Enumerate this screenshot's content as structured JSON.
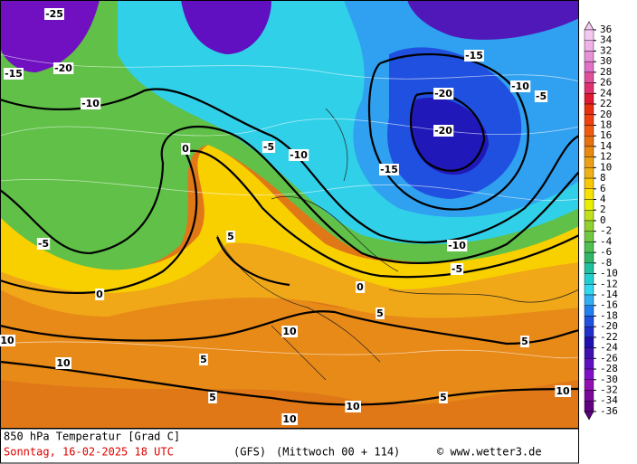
{
  "map": {
    "title": "850 hPa Temperatur [Grad C]",
    "date": "Sonntag, 16-02-2025  18 UTC",
    "model": "(GFS)",
    "run": "(Mittwoch 00 + 114)",
    "credit": "© www.wetter3.de",
    "legend": {
      "levels": [
        36,
        34,
        32,
        30,
        28,
        26,
        24,
        22,
        20,
        18,
        16,
        14,
        12,
        10,
        8,
        6,
        4,
        2,
        0,
        -2,
        -4,
        -6,
        -8,
        -10,
        -12,
        -14,
        -16,
        -18,
        -20,
        -22,
        -24,
        -26,
        -28,
        -30,
        -32,
        -34,
        -36
      ],
      "colors": [
        "#f4c8f0",
        "#f0b0e8",
        "#e890d8",
        "#e070c8",
        "#e0509c",
        "#e03070",
        "#e01830",
        "#e83010",
        "#f04010",
        "#f05a10",
        "#e87010",
        "#e88a10",
        "#eca018",
        "#f0b018",
        "#f8c800",
        "#f8e000",
        "#e8f000",
        "#c0e020",
        "#90d030",
        "#70c840",
        "#50c050",
        "#30b868",
        "#20c0a0",
        "#20d0d0",
        "#30d8f0",
        "#30b0f0",
        "#2080f0",
        "#2050e0",
        "#2030c8",
        "#2010b0",
        "#4010b0",
        "#6010c0",
        "#8010c8",
        "#9010b0",
        "#7a0898",
        "#600080"
      ]
    },
    "contour_labels": [
      "-20",
      "-20",
      "-15",
      "-10",
      "-5",
      "0",
      "0",
      "5",
      "5",
      "10",
      "10",
      "10",
      "10",
      "10",
      "10",
      "5",
      "5",
      "5",
      "-5",
      "-10",
      "-15",
      "-20",
      "-25",
      "-15",
      "-10",
      "-5",
      "-5",
      "-10",
      "0",
      "5"
    ]
  }
}
